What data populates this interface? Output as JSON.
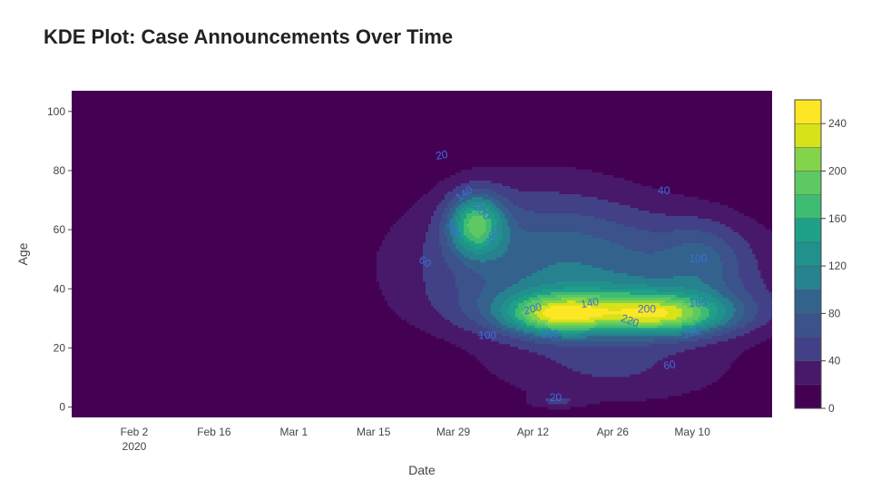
{
  "chart_data": {
    "type": "contour",
    "title": "KDE Plot: Case Announcements Over Time",
    "xlabel": "Date",
    "ylabel": "Age",
    "x_ticks": [
      "Feb 2",
      "Feb 16",
      "Mar 1",
      "Mar 15",
      "Mar 29",
      "Apr 12",
      "Apr 26",
      "May 10"
    ],
    "x_tick_year": "2020",
    "x_range": [
      "2020-01-22",
      "2020-05-24"
    ],
    "y_range": [
      -3.5,
      107
    ],
    "y_ticks": [
      0,
      20,
      40,
      60,
      80,
      100
    ],
    "colorscale": "Viridis",
    "colorbar": {
      "ticks": [
        0,
        40,
        80,
        120,
        160,
        200,
        240
      ],
      "range": [
        0,
        260
      ],
      "step": 20
    },
    "peaks": [
      {
        "x": "2020-04-02",
        "y": 62,
        "density": 230
      },
      {
        "x": "2020-04-16",
        "y": 31,
        "density": 245
      },
      {
        "x": "2020-05-05",
        "y": 31,
        "density": 232
      }
    ],
    "contour_labels": [
      {
        "text": "20",
        "x": "2020-03-27",
        "y": 85,
        "angle": -10
      },
      {
        "text": "140",
        "x": "2020-03-31",
        "y": 72,
        "angle": -35
      },
      {
        "text": "200",
        "x": "2020-04-03",
        "y": 66,
        "angle": 45
      },
      {
        "text": "180",
        "x": "2020-03-29",
        "y": 60,
        "angle": 60
      },
      {
        "text": "160",
        "x": "2020-04-05",
        "y": 58,
        "angle": -60
      },
      {
        "text": "60",
        "x": "2020-03-24",
        "y": 49,
        "angle": 30
      },
      {
        "text": "40",
        "x": "2020-05-05",
        "y": 73,
        "angle": 0
      },
      {
        "text": "100",
        "x": "2020-05-11",
        "y": 50,
        "angle": 0
      },
      {
        "text": "140",
        "x": "2020-04-22",
        "y": 35,
        "angle": -10
      },
      {
        "text": "200",
        "x": "2020-04-12",
        "y": 33,
        "angle": -15
      },
      {
        "text": "200",
        "x": "2020-05-02",
        "y": 33,
        "angle": 0
      },
      {
        "text": "160",
        "x": "2020-05-11",
        "y": 35,
        "angle": 0
      },
      {
        "text": "220",
        "x": "2020-04-29",
        "y": 29,
        "angle": 20
      },
      {
        "text": "180",
        "x": "2020-04-15",
        "y": 24.5,
        "angle": 0
      },
      {
        "text": "180",
        "x": "2020-05-10",
        "y": 25,
        "angle": -15
      },
      {
        "text": "100",
        "x": "2020-04-04",
        "y": 24,
        "angle": 0
      },
      {
        "text": "60",
        "x": "2020-05-06",
        "y": 14,
        "angle": -10
      },
      {
        "text": "20",
        "x": "2020-04-16",
        "y": 3,
        "angle": 0
      }
    ]
  }
}
